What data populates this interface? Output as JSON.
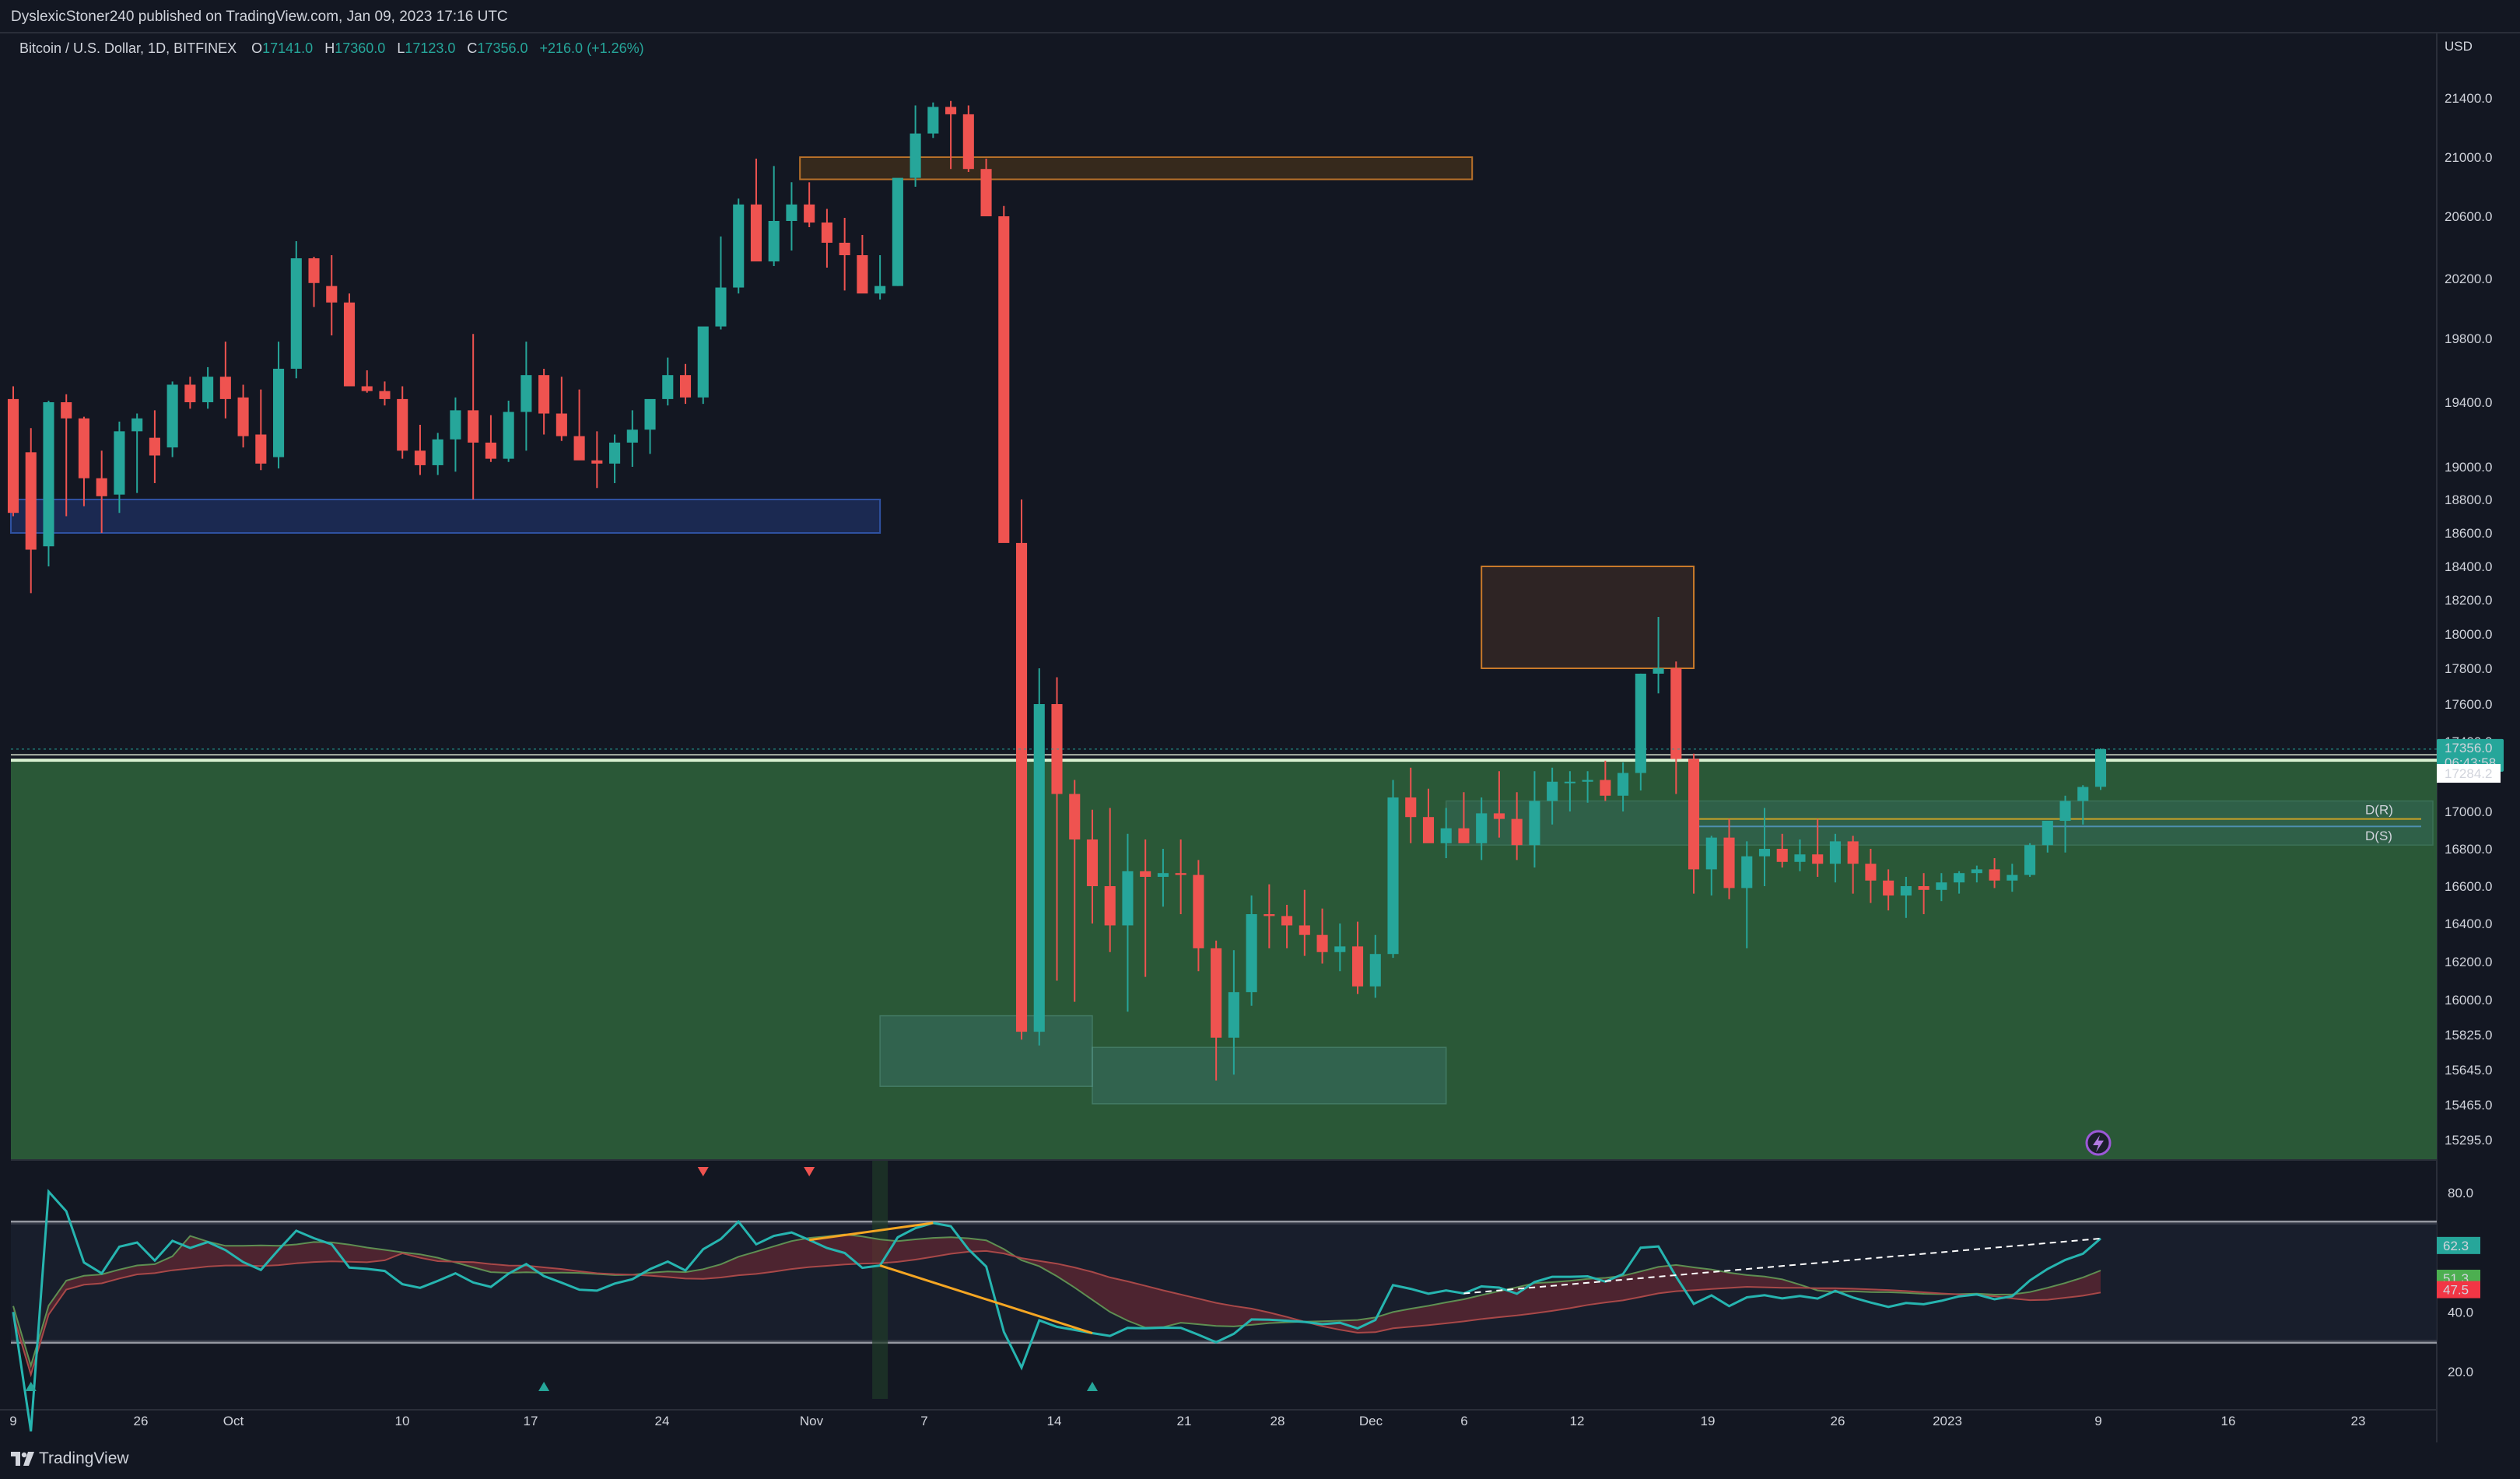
{
  "header": {
    "published_by": "DyslexicStoner240 published on TradingView.com, Jan 09, 2023 17:16 UTC"
  },
  "legend": {
    "symbol": "Bitcoin / U.S. Dollar, 1D, BITFINEX",
    "open_label": "O",
    "open": "17141.0",
    "high_label": "H",
    "high": "17360.0",
    "low_label": "L",
    "low": "17123.0",
    "close_label": "C",
    "close": "17356.0",
    "change": "+216.0 (+1.26%)"
  },
  "price_axis": {
    "currency": "USD",
    "ticks": [
      "21400.0",
      "21000.0",
      "20600.0",
      "20200.0",
      "19800.0",
      "19400.0",
      "19000.0",
      "18800.0",
      "18600.0",
      "18400.0",
      "18200.0",
      "18000.0",
      "17800.0",
      "17600.0",
      "17400.0",
      "17000.0",
      "16800.0",
      "16600.0",
      "16400.0",
      "16200.0",
      "16000.0",
      "15825.0",
      "15645.0",
      "15465.0",
      "15295.0"
    ],
    "last_price": "17356.0",
    "countdown": "06:43:58",
    "line_price": "17284.2"
  },
  "rsi_axis": {
    "ticks": [
      "80.0",
      "40.0",
      "20.0"
    ],
    "value_main": "62.3",
    "value_upper": "51.3",
    "value_lower": "47.5"
  },
  "time_axis": {
    "labels": [
      "9",
      "26",
      "Oct",
      "10",
      "17",
      "24",
      "Nov",
      "7",
      "14",
      "21",
      "28",
      "Dec",
      "6",
      "12",
      "19",
      "26",
      "2023",
      "9",
      "16",
      "23"
    ]
  },
  "annotations": {
    "pivot_r": "D(R)",
    "pivot_s": "D(S)"
  },
  "footer": {
    "brand": "TradingView"
  },
  "colors": {
    "bull": "#26a69a",
    "bear": "#ef5350",
    "background": "#131722",
    "demand_zone": "#2d5e3a",
    "rsi_line": "#26b5b0"
  },
  "chart_data": {
    "type": "candlestick",
    "title": "Bitcoin / U.S. Dollar, 1D, BITFINEX",
    "ylabel": "USD",
    "ylim": [
      15295,
      21600
    ],
    "date_range": [
      "2022-09-19",
      "2023-01-09"
    ],
    "candles_ohlc": [
      [
        19420,
        19500,
        18700,
        18720
      ],
      [
        19090,
        19240,
        18240,
        18500
      ],
      [
        18520,
        19410,
        18400,
        19400
      ],
      [
        19400,
        19450,
        18700,
        19300
      ],
      [
        19300,
        19310,
        18760,
        18930
      ],
      [
        18930,
        19100,
        18600,
        18820
      ],
      [
        18830,
        19280,
        18720,
        19220
      ],
      [
        19220,
        19330,
        18840,
        19300
      ],
      [
        19180,
        19350,
        18900,
        19070
      ],
      [
        19120,
        19530,
        19060,
        19510
      ],
      [
        19510,
        19560,
        19360,
        19400
      ],
      [
        19400,
        19620,
        19360,
        19560
      ],
      [
        19560,
        19780,
        19300,
        19420
      ],
      [
        19430,
        19510,
        19120,
        19190
      ],
      [
        19200,
        19480,
        18980,
        19020
      ],
      [
        19060,
        19780,
        18990,
        19610
      ],
      [
        19610,
        20440,
        19550,
        20330
      ],
      [
        20330,
        20340,
        20010,
        20170
      ],
      [
        20150,
        20350,
        19820,
        20040
      ],
      [
        20040,
        20100,
        19550,
        19500
      ],
      [
        19500,
        19600,
        19460,
        19470
      ],
      [
        19470,
        19530,
        19380,
        19420
      ],
      [
        19420,
        19500,
        19050,
        19100
      ],
      [
        19100,
        19260,
        18950,
        19010
      ],
      [
        19010,
        19210,
        18950,
        19170
      ],
      [
        19170,
        19430,
        18970,
        19350
      ],
      [
        19350,
        19830,
        18800,
        19150
      ],
      [
        19150,
        19320,
        19030,
        19050
      ],
      [
        19050,
        19410,
        19030,
        19340
      ],
      [
        19340,
        19780,
        19100,
        19570
      ],
      [
        19570,
        19610,
        19200,
        19330
      ],
      [
        19330,
        19560,
        19160,
        19190
      ],
      [
        19190,
        19480,
        19070,
        19040
      ],
      [
        19040,
        19220,
        18870,
        19020
      ],
      [
        19020,
        19200,
        18900,
        19150
      ],
      [
        19150,
        19350,
        19000,
        19230
      ],
      [
        19230,
        19320,
        19080,
        19420
      ],
      [
        19420,
        19680,
        19380,
        19570
      ],
      [
        19570,
        19640,
        19390,
        19430
      ],
      [
        19430,
        19820,
        19390,
        19880
      ],
      [
        19880,
        20470,
        19860,
        20140
      ],
      [
        20140,
        20720,
        20100,
        20680
      ],
      [
        20680,
        20990,
        20400,
        20310
      ],
      [
        20310,
        20940,
        20280,
        20570
      ],
      [
        20570,
        20830,
        20380,
        20680
      ],
      [
        20680,
        20830,
        20530,
        20560
      ],
      [
        20560,
        20650,
        20270,
        20430
      ],
      [
        20430,
        20590,
        20120,
        20350
      ],
      [
        20350,
        20480,
        20120,
        20100
      ],
      [
        20100,
        20350,
        20060,
        20150
      ],
      [
        20150,
        20720,
        20150,
        20860
      ],
      [
        20860,
        21450,
        20800,
        21160
      ],
      [
        21160,
        21430,
        21130,
        21340
      ],
      [
        21340,
        21380,
        20920,
        21290
      ],
      [
        21290,
        21350,
        20900,
        20920
      ],
      [
        20920,
        20990,
        20700,
        20600
      ],
      [
        20600,
        20670,
        18600,
        18540
      ],
      [
        18540,
        18800,
        15800,
        15840
      ],
      [
        15840,
        17800,
        15770,
        17600
      ],
      [
        17600,
        17750,
        16100,
        17100
      ],
      [
        17100,
        17180,
        15990,
        16850
      ],
      [
        16850,
        17010,
        16400,
        16600
      ],
      [
        16600,
        17020,
        16250,
        16390
      ],
      [
        16390,
        16880,
        15940,
        16680
      ],
      [
        16680,
        16850,
        16120,
        16650
      ],
      [
        16650,
        16800,
        16490,
        16670
      ],
      [
        16670,
        16850,
        16450,
        16660
      ],
      [
        16660,
        16740,
        16150,
        16270
      ],
      [
        16270,
        16310,
        15590,
        15810
      ],
      [
        15810,
        16260,
        15620,
        16040
      ],
      [
        16040,
        16550,
        15970,
        16450
      ],
      [
        16450,
        16610,
        16270,
        16440
      ],
      [
        16440,
        16500,
        16270,
        16390
      ],
      [
        16390,
        16580,
        16230,
        16340
      ],
      [
        16340,
        16480,
        16190,
        16250
      ],
      [
        16250,
        16400,
        16150,
        16280
      ],
      [
        16280,
        16410,
        16030,
        16070
      ],
      [
        16070,
        16340,
        16010,
        16240
      ],
      [
        16240,
        17180,
        16220,
        17080
      ],
      [
        17080,
        17250,
        16830,
        16970
      ],
      [
        16970,
        17130,
        16840,
        16830
      ],
      [
        16830,
        17020,
        16750,
        16910
      ],
      [
        16910,
        17110,
        16870,
        16830
      ],
      [
        16830,
        17080,
        16740,
        16990
      ],
      [
        16990,
        17230,
        16860,
        16960
      ],
      [
        16960,
        17110,
        16740,
        16820
      ],
      [
        16820,
        17230,
        16700,
        17060
      ],
      [
        17060,
        17250,
        16930,
        17170
      ],
      [
        17170,
        17230,
        17000,
        17170
      ],
      [
        17170,
        17230,
        17050,
        17180
      ],
      [
        17180,
        17290,
        17060,
        17090
      ],
      [
        17090,
        17280,
        17000,
        17220
      ],
      [
        17220,
        17770,
        17120,
        17770
      ],
      [
        17770,
        18100,
        17660,
        17800
      ],
      [
        17800,
        17840,
        17100,
        17300
      ],
      [
        17300,
        17330,
        16560,
        16690
      ],
      [
        16690,
        16870,
        16550,
        16860
      ],
      [
        16860,
        16960,
        16530,
        16590
      ],
      [
        16590,
        16840,
        16270,
        16760
      ],
      [
        16760,
        17020,
        16600,
        16800
      ],
      [
        16800,
        16880,
        16700,
        16730
      ],
      [
        16730,
        16850,
        16680,
        16770
      ],
      [
        16770,
        16960,
        16650,
        16720
      ],
      [
        16720,
        16880,
        16620,
        16840
      ],
      [
        16840,
        16870,
        16560,
        16720
      ],
      [
        16720,
        16800,
        16510,
        16630
      ],
      [
        16630,
        16690,
        16470,
        16550
      ],
      [
        16550,
        16650,
        16430,
        16600
      ],
      [
        16600,
        16670,
        16450,
        16580
      ],
      [
        16580,
        16670,
        16520,
        16620
      ],
      [
        16620,
        16680,
        16560,
        16670
      ],
      [
        16670,
        16710,
        16620,
        16690
      ],
      [
        16690,
        16750,
        16590,
        16630
      ],
      [
        16630,
        16720,
        16570,
        16660
      ],
      [
        16660,
        16830,
        16650,
        16820
      ],
      [
        16820,
        16930,
        16780,
        16950
      ],
      [
        16950,
        17090,
        16780,
        17060
      ],
      [
        17060,
        17150,
        16930,
        17140
      ],
      [
        17141,
        17360,
        17123,
        17356
      ]
    ],
    "zones": {
      "supply_upper": [
        20850,
        21000
      ],
      "supply_mid": [
        18600,
        18800
      ],
      "supply_dec": [
        17800,
        18400
      ],
      "demand_green": [
        15295,
        17284
      ],
      "pivot_r": 16960,
      "pivot_s": 16920
    },
    "rsi": {
      "ylim": [
        10,
        90
      ],
      "upper_band": 70,
      "lower_band": 30,
      "last": 62.3,
      "band_upper": 51.3,
      "band_lower": 47.5
    }
  }
}
